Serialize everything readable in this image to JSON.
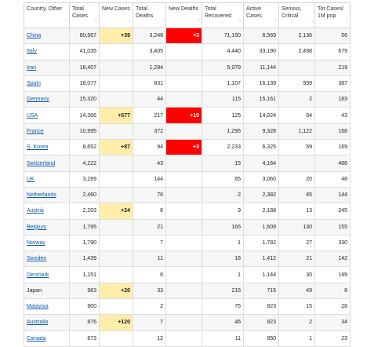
{
  "columns": [
    {
      "key": "country",
      "label": "Country, Other"
    },
    {
      "key": "total_cases",
      "label": "Total Cases"
    },
    {
      "key": "new_cases",
      "label": "New Cases"
    },
    {
      "key": "total_deaths",
      "label": "Total Deaths"
    },
    {
      "key": "new_deaths",
      "label": "New Deaths"
    },
    {
      "key": "total_recovered",
      "label": "Total Recovered"
    },
    {
      "key": "active_cases",
      "label": "Active Cases"
    },
    {
      "key": "serious",
      "label": "Serious, Critical"
    },
    {
      "key": "per_million",
      "label": "Tot Cases/ 1M pop"
    }
  ],
  "rows": [
    {
      "country": "China",
      "link": true,
      "total_cases": "80,967",
      "new_cases": "+39",
      "total_deaths": "3,248",
      "new_deaths": "+3",
      "total_recovered": "71,150",
      "active_cases": "6,569",
      "serious": "2,136",
      "per_million": "56"
    },
    {
      "country": "Italy",
      "link": true,
      "total_cases": "41,035",
      "new_cases": "",
      "total_deaths": "3,405",
      "new_deaths": "",
      "total_recovered": "4,440",
      "active_cases": "33,190",
      "serious": "2,498",
      "per_million": "679"
    },
    {
      "country": "Iran",
      "link": true,
      "total_cases": "18,407",
      "new_cases": "",
      "total_deaths": "1,284",
      "new_deaths": "",
      "total_recovered": "5,979",
      "active_cases": "11,144",
      "serious": "",
      "per_million": "219"
    },
    {
      "country": "Spain",
      "link": true,
      "total_cases": "18,077",
      "new_cases": "",
      "total_deaths": "831",
      "new_deaths": "",
      "total_recovered": "1,107",
      "active_cases": "16,139",
      "serious": "939",
      "per_million": "387"
    },
    {
      "country": "Germany",
      "link": true,
      "total_cases": "15,320",
      "new_cases": "",
      "total_deaths": "44",
      "new_deaths": "",
      "total_recovered": "115",
      "active_cases": "15,161",
      "serious": "2",
      "per_million": "183"
    },
    {
      "country": "USA",
      "link": true,
      "total_cases": "14,366",
      "new_cases": "+577",
      "total_deaths": "217",
      "new_deaths": "+10",
      "total_recovered": "125",
      "active_cases": "14,024",
      "serious": "64",
      "per_million": "43"
    },
    {
      "country": "France",
      "link": true,
      "total_cases": "10,995",
      "new_cases": "",
      "total_deaths": "372",
      "new_deaths": "",
      "total_recovered": "1,295",
      "active_cases": "9,328",
      "serious": "1,122",
      "per_million": "168"
    },
    {
      "country": "S. Korea",
      "link": true,
      "total_cases": "8,652",
      "new_cases": "+87",
      "total_deaths": "94",
      "new_deaths": "+3",
      "total_recovered": "2,233",
      "active_cases": "6,325",
      "serious": "59",
      "per_million": "169"
    },
    {
      "country": "Switzerland",
      "link": true,
      "total_cases": "4,222",
      "new_cases": "",
      "total_deaths": "43",
      "new_deaths": "",
      "total_recovered": "15",
      "active_cases": "4,164",
      "serious": "",
      "per_million": "488"
    },
    {
      "country": "UK",
      "link": true,
      "total_cases": "3,269",
      "new_cases": "",
      "total_deaths": "144",
      "new_deaths": "",
      "total_recovered": "65",
      "active_cases": "3,060",
      "serious": "20",
      "per_million": "48"
    },
    {
      "country": "Netherlands",
      "link": true,
      "total_cases": "2,460",
      "new_cases": "",
      "total_deaths": "76",
      "new_deaths": "",
      "total_recovered": "2",
      "active_cases": "2,382",
      "serious": "45",
      "per_million": "144"
    },
    {
      "country": "Austria",
      "link": true,
      "total_cases": "2,203",
      "new_cases": "+24",
      "total_deaths": "6",
      "new_deaths": "",
      "total_recovered": "9",
      "active_cases": "2,188",
      "serious": "13",
      "per_million": "245"
    },
    {
      "country": "Belgium",
      "link": true,
      "total_cases": "1,795",
      "new_cases": "",
      "total_deaths": "21",
      "new_deaths": "",
      "total_recovered": "165",
      "active_cases": "1,609",
      "serious": "130",
      "per_million": "155"
    },
    {
      "country": "Norway",
      "link": true,
      "total_cases": "1,790",
      "new_cases": "",
      "total_deaths": "7",
      "new_deaths": "",
      "total_recovered": "1",
      "active_cases": "1,782",
      "serious": "27",
      "per_million": "330"
    },
    {
      "country": "Sweden",
      "link": true,
      "total_cases": "1,439",
      "new_cases": "",
      "total_deaths": "11",
      "new_deaths": "",
      "total_recovered": "16",
      "active_cases": "1,412",
      "serious": "21",
      "per_million": "142"
    },
    {
      "country": "Denmark",
      "link": true,
      "total_cases": "1,151",
      "new_cases": "",
      "total_deaths": "6",
      "new_deaths": "",
      "total_recovered": "1",
      "active_cases": "1,144",
      "serious": "30",
      "per_million": "199"
    },
    {
      "country": "Japan",
      "link": false,
      "total_cases": "963",
      "new_cases": "+20",
      "total_deaths": "33",
      "new_deaths": "",
      "total_recovered": "215",
      "active_cases": "715",
      "serious": "49",
      "per_million": "8"
    },
    {
      "country": "Malaysia",
      "link": true,
      "total_cases": "900",
      "new_cases": "",
      "total_deaths": "2",
      "new_deaths": "",
      "total_recovered": "75",
      "active_cases": "823",
      "serious": "15",
      "per_million": "28"
    },
    {
      "country": "Australia",
      "link": true,
      "total_cases": "876",
      "new_cases": "+120",
      "total_deaths": "7",
      "new_deaths": "",
      "total_recovered": "46",
      "active_cases": "823",
      "serious": "2",
      "per_million": "34"
    },
    {
      "country": "Canada",
      "link": true,
      "total_cases": "873",
      "new_cases": "",
      "total_deaths": "12",
      "new_deaths": "",
      "total_recovered": "11",
      "active_cases": "850",
      "serious": "1",
      "per_million": "23"
    }
  ],
  "colors": {
    "new_cases_bg": "#ffeeaa",
    "new_deaths_bg": "#ff0000",
    "link": "#0a5cad"
  },
  "sort_indicator_icon": "sort-arrows-icon"
}
